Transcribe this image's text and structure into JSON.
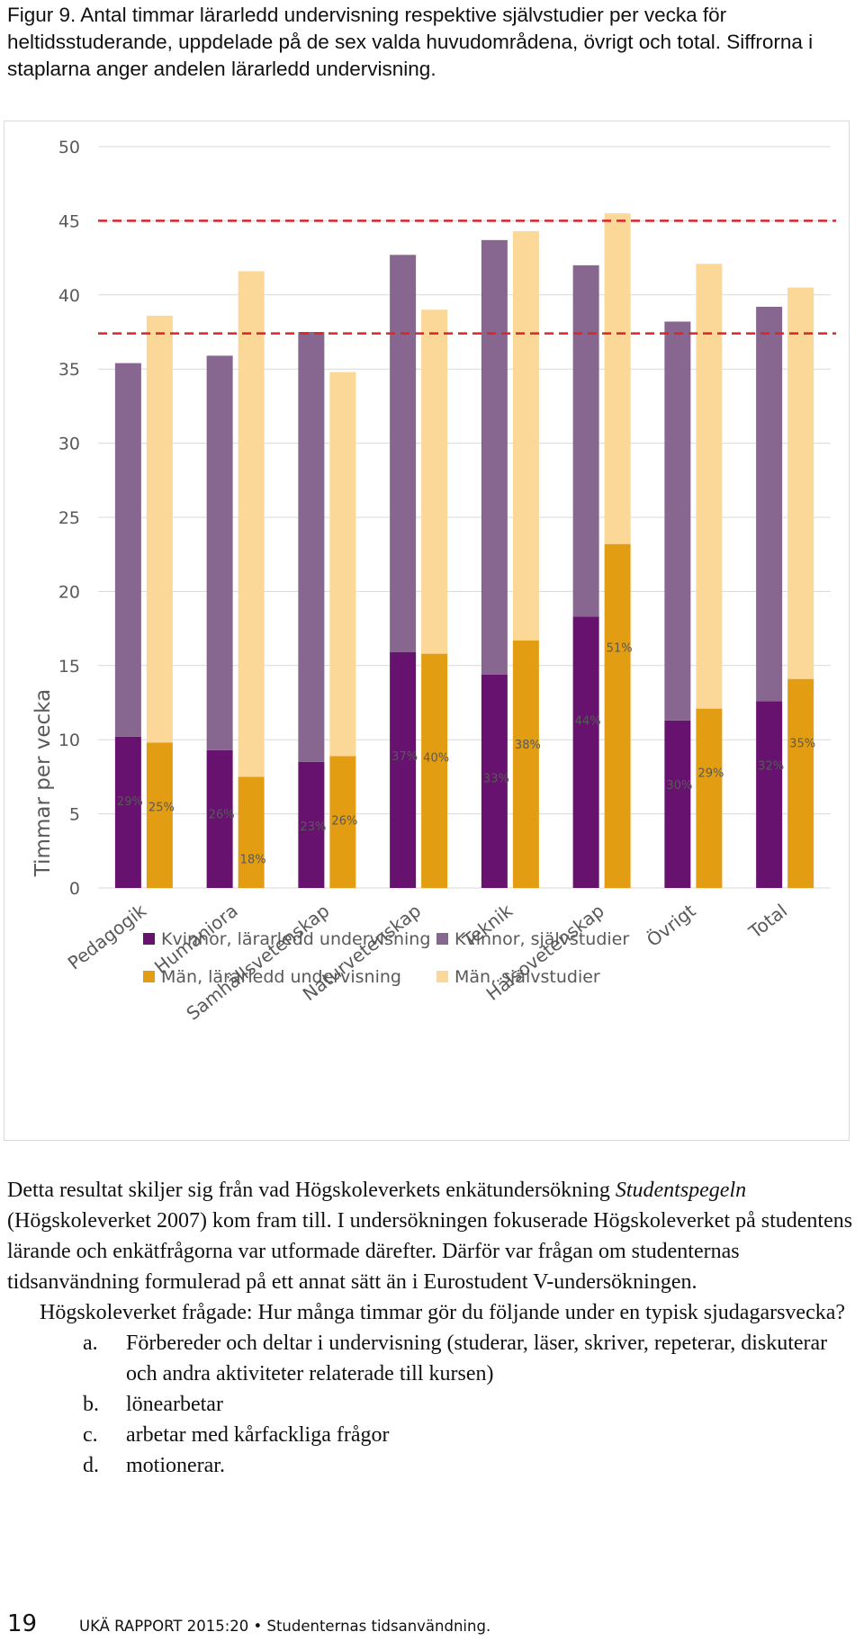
{
  "caption": "Figur 9. Antal timmar lärarledd undervisning respektive självstudier per vecka för heltidsstuderande, uppdelade på de sex valda huvudområdena, övrigt och total. Siffrorna i staplarna anger andelen lärarledd undervisning.",
  "chart_data": {
    "type": "bar",
    "stacked": true,
    "ylabel": "Timmar per vecka",
    "xlabel": "",
    "ylim": [
      0,
      50
    ],
    "yticks": [
      0,
      5,
      10,
      15,
      20,
      25,
      30,
      35,
      40,
      45,
      50
    ],
    "categories": [
      "Pedagogik",
      "Humaniora",
      "Samhällsvetenskap",
      "Naturvetenskap",
      "Teknik",
      "Hälsovetenskap",
      "Övrigt",
      "Total"
    ],
    "series": [
      {
        "name": "Kvinnor, lärarledd undervisning",
        "group": "Kvinnor",
        "color": "#68126f",
        "values": [
          10.2,
          9.3,
          8.5,
          15.9,
          14.4,
          18.3,
          11.3,
          12.6
        ]
      },
      {
        "name": "Kvinnor, självstudier",
        "group": "Kvinnor",
        "color": "#876690",
        "values": [
          25.2,
          26.6,
          29.0,
          26.8,
          29.3,
          23.7,
          26.9,
          26.6
        ]
      },
      {
        "name": "Män, lärarledd undervisning",
        "group": "Män",
        "color": "#e29d12",
        "values": [
          9.8,
          7.5,
          8.9,
          15.8,
          16.7,
          23.2,
          12.1,
          14.1
        ]
      },
      {
        "name": "Män, självstudier",
        "group": "Män",
        "color": "#fcd898",
        "values": [
          28.8,
          34.1,
          25.9,
          23.2,
          27.6,
          22.3,
          30.0,
          26.4
        ]
      }
    ],
    "data_labels": {
      "Kvinnor": [
        "29%",
        "26%",
        "23%",
        "37%",
        "33%",
        "44%",
        "30%",
        "32%"
      ],
      "Män": [
        "25%",
        "18%",
        "26%",
        "40%",
        "38%",
        "51%",
        "29%",
        "35%"
      ]
    },
    "reference_lines": [
      {
        "value": 45,
        "style": "dashed",
        "color": "#d9262a"
      },
      {
        "value": 37.4,
        "style": "dashed",
        "color": "#d9262a"
      }
    ],
    "legend_position": "bottom"
  },
  "body": {
    "p1_before": "Detta resultat skiljer sig från vad Högskoleverkets enkätundersökning ",
    "p1_italic": "Studentspegeln",
    "p1_after": " (Högskoleverket 2007) kom fram till. I undersökningen fokuserade Högskoleverket på studentens lärande och enkätfrågorna var utformade därefter. Därför var frågan om studenternas tidsanvändning formulerad på ett annat sätt än i Eurostudent V-undersökningen.",
    "p2": "Högskoleverket frågade: Hur många timmar gör du följande under en typisk sjudagarsvecka?",
    "list": [
      {
        "label": "a.",
        "text": "Förbereder och deltar i undervisning (studerar, läser, skriver, repeterar, diskuterar och andra aktiviteter relaterade till kursen)"
      },
      {
        "label": "b.",
        "text": "lönearbetar"
      },
      {
        "label": "c.",
        "text": "arbetar med kårfackliga frågor"
      },
      {
        "label": "d.",
        "text": "motionerar."
      }
    ]
  },
  "footer": {
    "page_number": "19",
    "text": "UKÄ RAPPORT 2015:20 • Studenternas tidsanvändning."
  }
}
